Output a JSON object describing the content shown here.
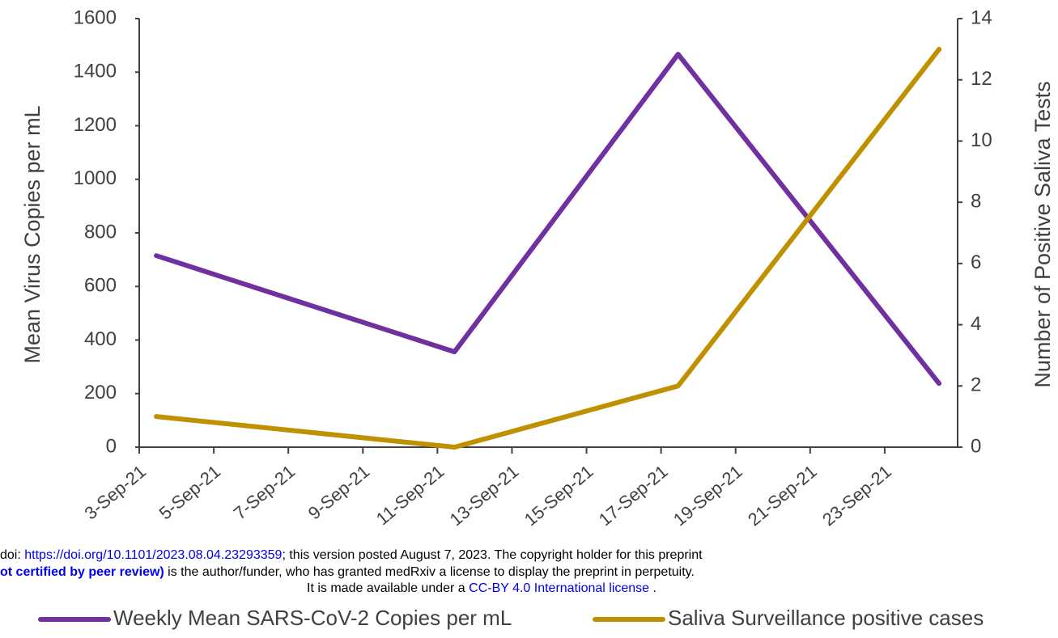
{
  "chart_data": {
    "type": "line",
    "x": [
      "2021-09-03T11:00",
      "2021-09-11T11:00",
      "2021-09-17T11:00",
      "2021-09-24T11:00"
    ],
    "xlim": [
      "2021-09-03",
      "2021-09-25"
    ],
    "xticks": [
      {
        "value": "2021-09-03",
        "label": "3-Sep-21"
      },
      {
        "value": "2021-09-05",
        "label": "5-Sep-21"
      },
      {
        "value": "2021-09-07",
        "label": "7-Sep-21"
      },
      {
        "value": "2021-09-09",
        "label": "9-Sep-21"
      },
      {
        "value": "2021-09-11",
        "label": "11-Sep-21"
      },
      {
        "value": "2021-09-13",
        "label": "13-Sep-21"
      },
      {
        "value": "2021-09-15",
        "label": "15-Sep-21"
      },
      {
        "value": "2021-09-17",
        "label": "17-Sep-21"
      },
      {
        "value": "2021-09-19",
        "label": "19-Sep-21"
      },
      {
        "value": "2021-09-21",
        "label": "21-Sep-21"
      },
      {
        "value": "2021-09-23",
        "label": "23-Sep-21"
      }
    ],
    "ylabel": "Mean Virus  Copies per mL",
    "y2label": "Number of Positive Saliva Tests",
    "ylim": [
      0,
      1600
    ],
    "yticks": [
      0,
      200,
      400,
      600,
      800,
      1000,
      1200,
      1400,
      1600
    ],
    "y2lim": [
      0,
      14
    ],
    "y2ticks": [
      0,
      2,
      4,
      6,
      8,
      10,
      12,
      14
    ],
    "series": [
      {
        "name": "Weekly Mean SARS-CoV-2 Copies per mL",
        "color": "#7030a0",
        "values": [
          715,
          356,
          1467,
          238
        ]
      },
      {
        "name": "Saliva Surveillance positive cases",
        "color": "#bf9000",
        "axis": "y2",
        "values": [
          1,
          0,
          2,
          13
        ]
      }
    ],
    "legend": "bottom"
  },
  "preprint_notice": {
    "line1": {
      "prefix": "doi: ",
      "link": "https://doi.org/10.1101/2023.08.04.23293359",
      "suffix": "; this version posted August 7, 2023. The copyright holder for this preprint"
    },
    "line2": {
      "bold": "ot certified by peer review)",
      "rest": " is the author/funder, who has granted medRxiv a license to display the preprint in perpetuity."
    },
    "line3": {
      "prefix": "It is made available under a ",
      "link": "CC-BY 4.0 International license",
      "suffix": " ."
    }
  }
}
